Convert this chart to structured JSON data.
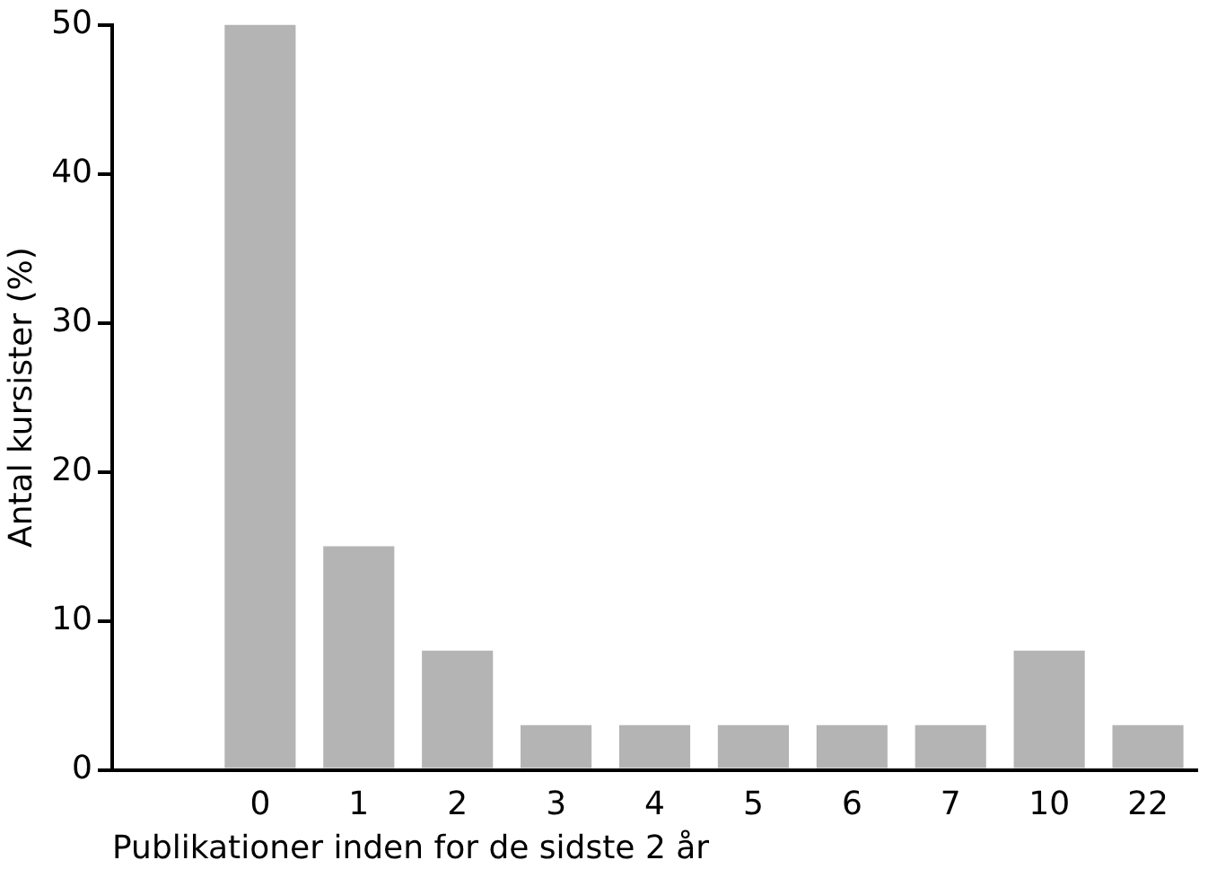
{
  "chart_data": {
    "type": "bar",
    "xlabel": "Publikationer inden for de sidste 2 år",
    "ylabel": "Antal kursister (%)",
    "categories": [
      null,
      "0",
      "1",
      "2",
      "3",
      "4",
      "5",
      "6",
      "7",
      "10",
      "22"
    ],
    "values": [
      null,
      50,
      15,
      8,
      3,
      3,
      3,
      3,
      3,
      8,
      3
    ],
    "color": "#b4b4b4",
    "ylim": [
      0,
      50
    ],
    "yticks": [
      0,
      10,
      20,
      30,
      40,
      50
    ],
    "grid": false,
    "legend": false
  }
}
